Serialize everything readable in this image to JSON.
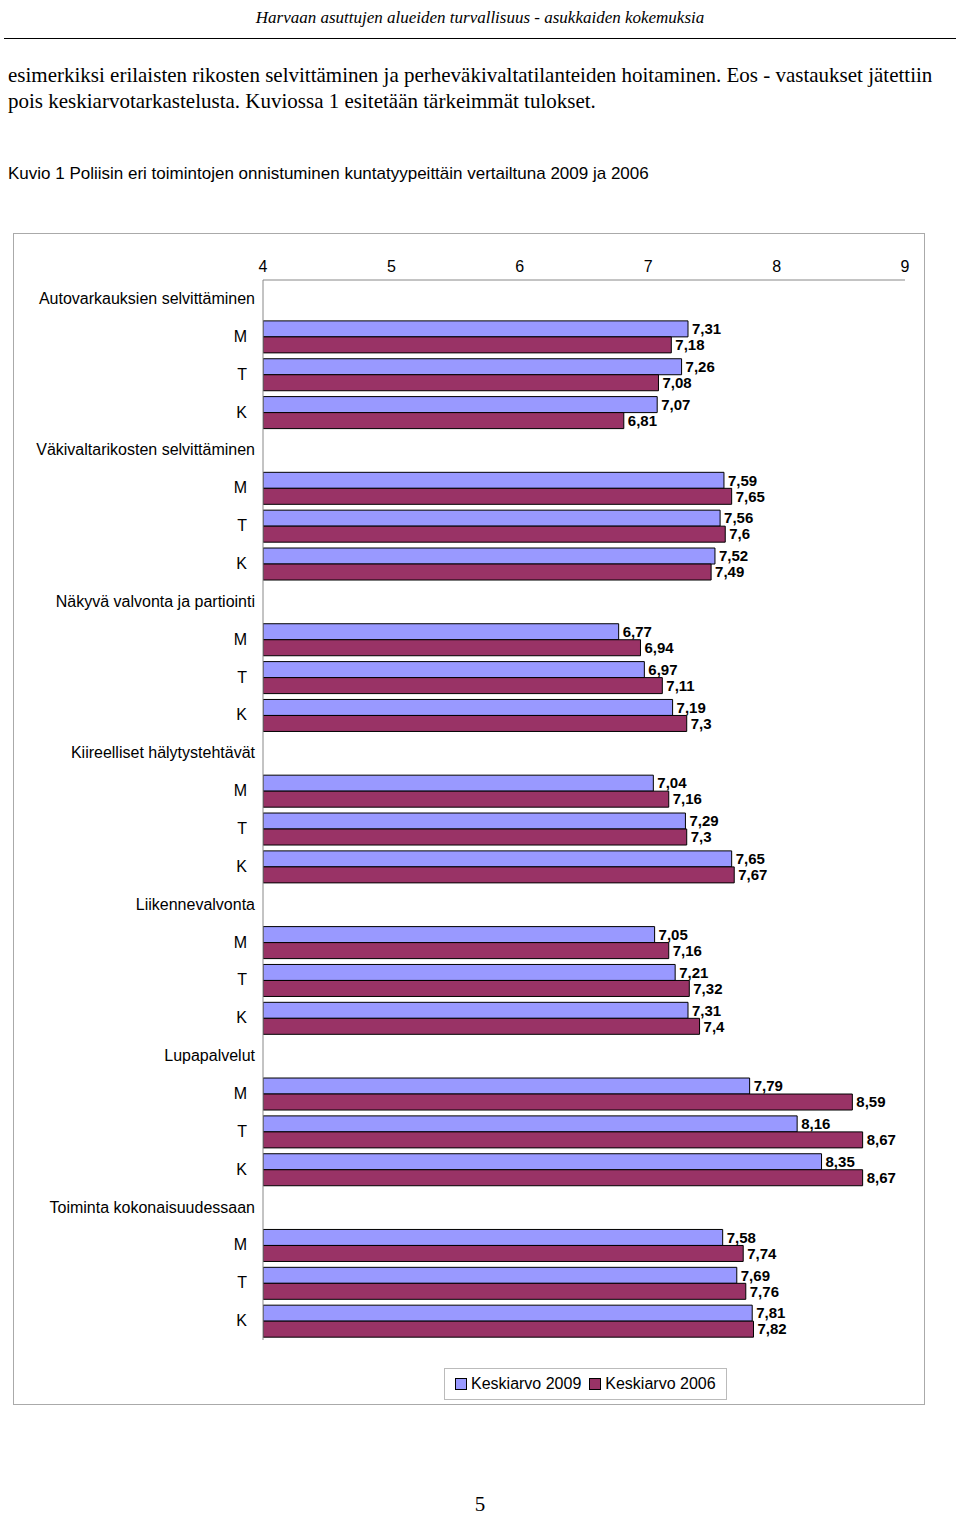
{
  "page": {
    "header": "Harvaan asuttujen alueiden turvallisuus - asukkaiden kokemuksia",
    "paragraph": "esimerkiksi erilaisten rikosten selvittäminen ja perheväkivaltatilanteiden hoitaminen. Eos - vastaukset jätettiin pois keskiarvotarkastelusta. Kuviossa 1 esitetään tärkeimmät tulokset.",
    "caption": "Kuvio 1 Poliisin eri toimintojen onnistuminen kuntatyypeittäin vertailtuna 2009 ja 2006",
    "page_number": "5"
  },
  "chart_data": {
    "type": "bar",
    "orientation": "horizontal",
    "data_labels": true,
    "grid": false,
    "legend": "bottom",
    "xlim": [
      4,
      9
    ],
    "xticks": [
      4,
      5,
      6,
      7,
      8,
      9
    ],
    "categories": [
      "Autovarkauksien selvittäminen",
      "M",
      "T",
      "K",
      "Väkivaltarikosten selvittäminen",
      "M",
      "T",
      "K",
      "Näkyvä valvonta ja partiointi",
      "M",
      "T",
      "K",
      "Kiireelliset hälytystehtävät",
      "M",
      "T",
      "K",
      "Liikennevalvonta",
      "M",
      "T",
      "K",
      "Lupapalvelut",
      "M",
      "T",
      "K",
      "Toiminta kokonaisuudessaan",
      "M",
      "T",
      "K"
    ],
    "series": [
      {
        "name": "Keskiarvo 2009",
        "color": "#9999ff",
        "values": [
          null,
          7.31,
          7.26,
          7.07,
          null,
          7.59,
          7.56,
          7.52,
          null,
          6.77,
          6.97,
          7.19,
          null,
          7.04,
          7.29,
          7.65,
          null,
          7.05,
          7.21,
          7.31,
          null,
          7.79,
          8.16,
          8.35,
          null,
          7.58,
          7.69,
          7.81
        ],
        "value_labels": [
          null,
          "7,31",
          "7,26",
          "7,07",
          null,
          "7,59",
          "7,56",
          "7,52",
          null,
          "6,77",
          "6,97",
          "7,19",
          null,
          "7,04",
          "7,29",
          "7,65",
          null,
          "7,05",
          "7,21",
          "7,31",
          null,
          "7,79",
          "8,16",
          "8,35",
          null,
          "7,58",
          "7,69",
          "7,81"
        ]
      },
      {
        "name": "Keskiarvo 2006",
        "color": "#993366",
        "values": [
          null,
          7.18,
          7.08,
          6.81,
          null,
          7.65,
          7.6,
          7.49,
          null,
          6.94,
          7.11,
          7.3,
          null,
          7.16,
          7.3,
          7.67,
          null,
          7.16,
          7.32,
          7.4,
          null,
          8.59,
          8.67,
          8.67,
          null,
          7.74,
          7.76,
          7.82
        ],
        "value_labels": [
          null,
          "7,18",
          "7,08",
          "6,81",
          null,
          "7,65",
          "7,6",
          "7,49",
          null,
          "6,94",
          "7,11",
          "7,3",
          null,
          "7,16",
          "7,3",
          "7,67",
          null,
          "7,16",
          "7,32",
          "7,4",
          null,
          "8,59",
          "8,67",
          "8,67",
          null,
          "7,74",
          "7,76",
          "7,82"
        ]
      }
    ]
  }
}
